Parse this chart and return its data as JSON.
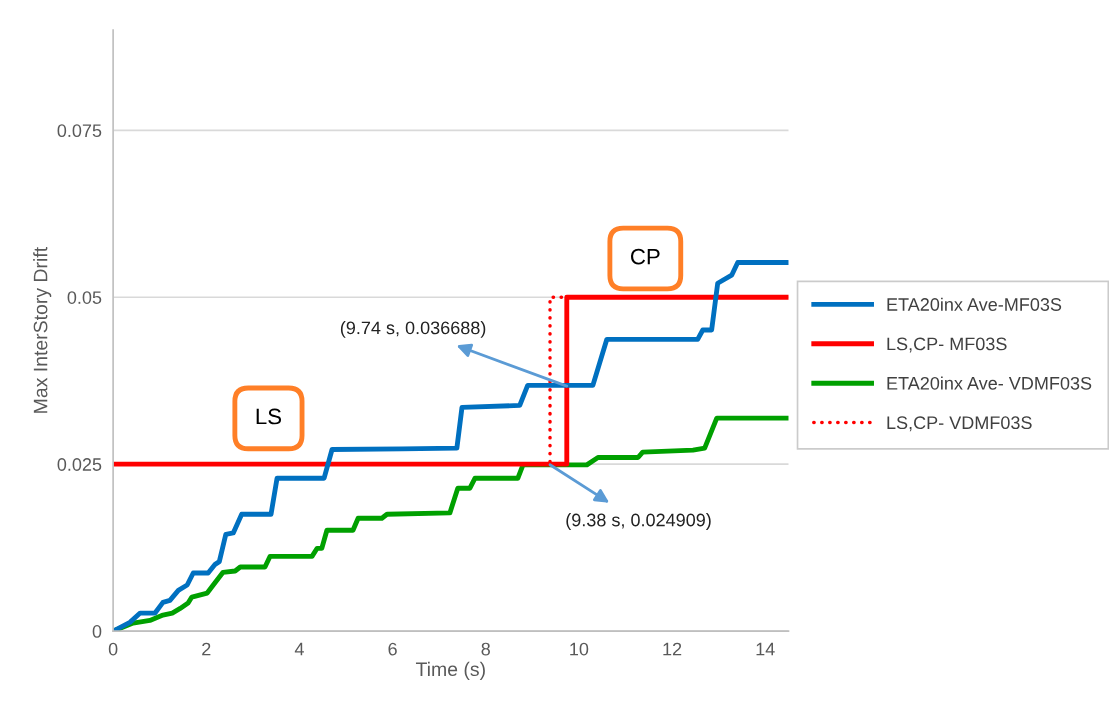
{
  "chart_data": {
    "type": "line",
    "xlabel": "Time (s)",
    "ylabel": "Max InterStory Drift",
    "xlim": [
      0,
      14.5
    ],
    "xticks": [
      0,
      2,
      4,
      6,
      8,
      10,
      12,
      14
    ],
    "ylim": [
      0,
      0.09
    ],
    "yticks": [
      0,
      0.025,
      0.05,
      0.075
    ],
    "grid": "y",
    "legend": "right",
    "marker": "none",
    "series": [
      {
        "name": "ETA20inx Ave-MF03S",
        "color": "#0070c0",
        "line_style": "solid",
        "x": [
          0,
          0.36,
          0.58,
          0.9,
          1.07,
          1.22,
          1.4,
          1.59,
          1.72,
          2.04,
          2.19,
          2.28,
          2.42,
          2.58,
          2.76,
          3.39,
          3.52,
          4.53,
          4.7,
          6.2,
          7.38,
          7.49,
          8.73,
          8.9,
          10.3,
          10.6,
          12.55,
          12.66,
          12.85,
          12.98,
          13.28,
          13.41,
          14.5
        ],
        "values": [
          0,
          0.0013,
          0.0027,
          0.0027,
          0.0043,
          0.0046,
          0.0061,
          0.0069,
          0.0087,
          0.0087,
          0.01,
          0.0104,
          0.0145,
          0.0147,
          0.0175,
          0.0175,
          0.0229,
          0.0229,
          0.0272,
          0.0273,
          0.0274,
          0.0335,
          0.0338,
          0.0368,
          0.0368,
          0.0437,
          0.0437,
          0.0451,
          0.0451,
          0.0521,
          0.0533,
          0.0552,
          0.0552
        ]
      },
      {
        "name": "LS,CP- MF03S",
        "color": "#ff0000",
        "line_style": "solid",
        "x": [
          0,
          9.74,
          9.74,
          14.5
        ],
        "values": [
          0.025,
          0.025,
          0.05,
          0.05
        ]
      },
      {
        "name": "ETA20inx Ave- VDMF03S",
        "color": "#00a000",
        "line_style": "solid",
        "x": [
          0,
          0.43,
          0.79,
          1.07,
          1.27,
          1.44,
          1.61,
          1.69,
          2.02,
          2.15,
          2.36,
          2.62,
          2.73,
          3.26,
          3.37,
          4.27,
          4.38,
          4.48,
          4.59,
          5.15,
          5.26,
          5.77,
          5.88,
          7.23,
          7.4,
          7.66,
          7.77,
          8.69,
          8.8,
          9.38,
          10.17,
          10.41,
          11.27,
          11.37,
          12.45,
          12.7,
          12.96,
          14.5
        ],
        "values": [
          0,
          0.0012,
          0.0016,
          0.0024,
          0.0027,
          0.0034,
          0.0042,
          0.0051,
          0.0057,
          0.0069,
          0.0088,
          0.009,
          0.0096,
          0.0096,
          0.0112,
          0.0112,
          0.0124,
          0.0124,
          0.0151,
          0.0151,
          0.0169,
          0.0169,
          0.0175,
          0.0177,
          0.0214,
          0.0214,
          0.0229,
          0.0229,
          0.0249,
          0.0249,
          0.0249,
          0.026,
          0.026,
          0.0268,
          0.0271,
          0.0274,
          0.0319,
          0.0319
        ]
      },
      {
        "name": "LS,CP- VDMF03S",
        "color": "#ff0000",
        "line_style": "dotted",
        "x": [
          0,
          9.38,
          9.38,
          9.74
        ],
        "values": [
          0.025,
          0.025,
          0.05,
          0.05
        ]
      }
    ],
    "annotations": [
      {
        "text": "(9.74 s, 0.036688)",
        "x": 9.74,
        "y": 0.036688
      },
      {
        "text": "(9.38 s, 0.024909)",
        "x": 9.38,
        "y": 0.024909
      },
      "LS",
      "CP"
    ]
  }
}
